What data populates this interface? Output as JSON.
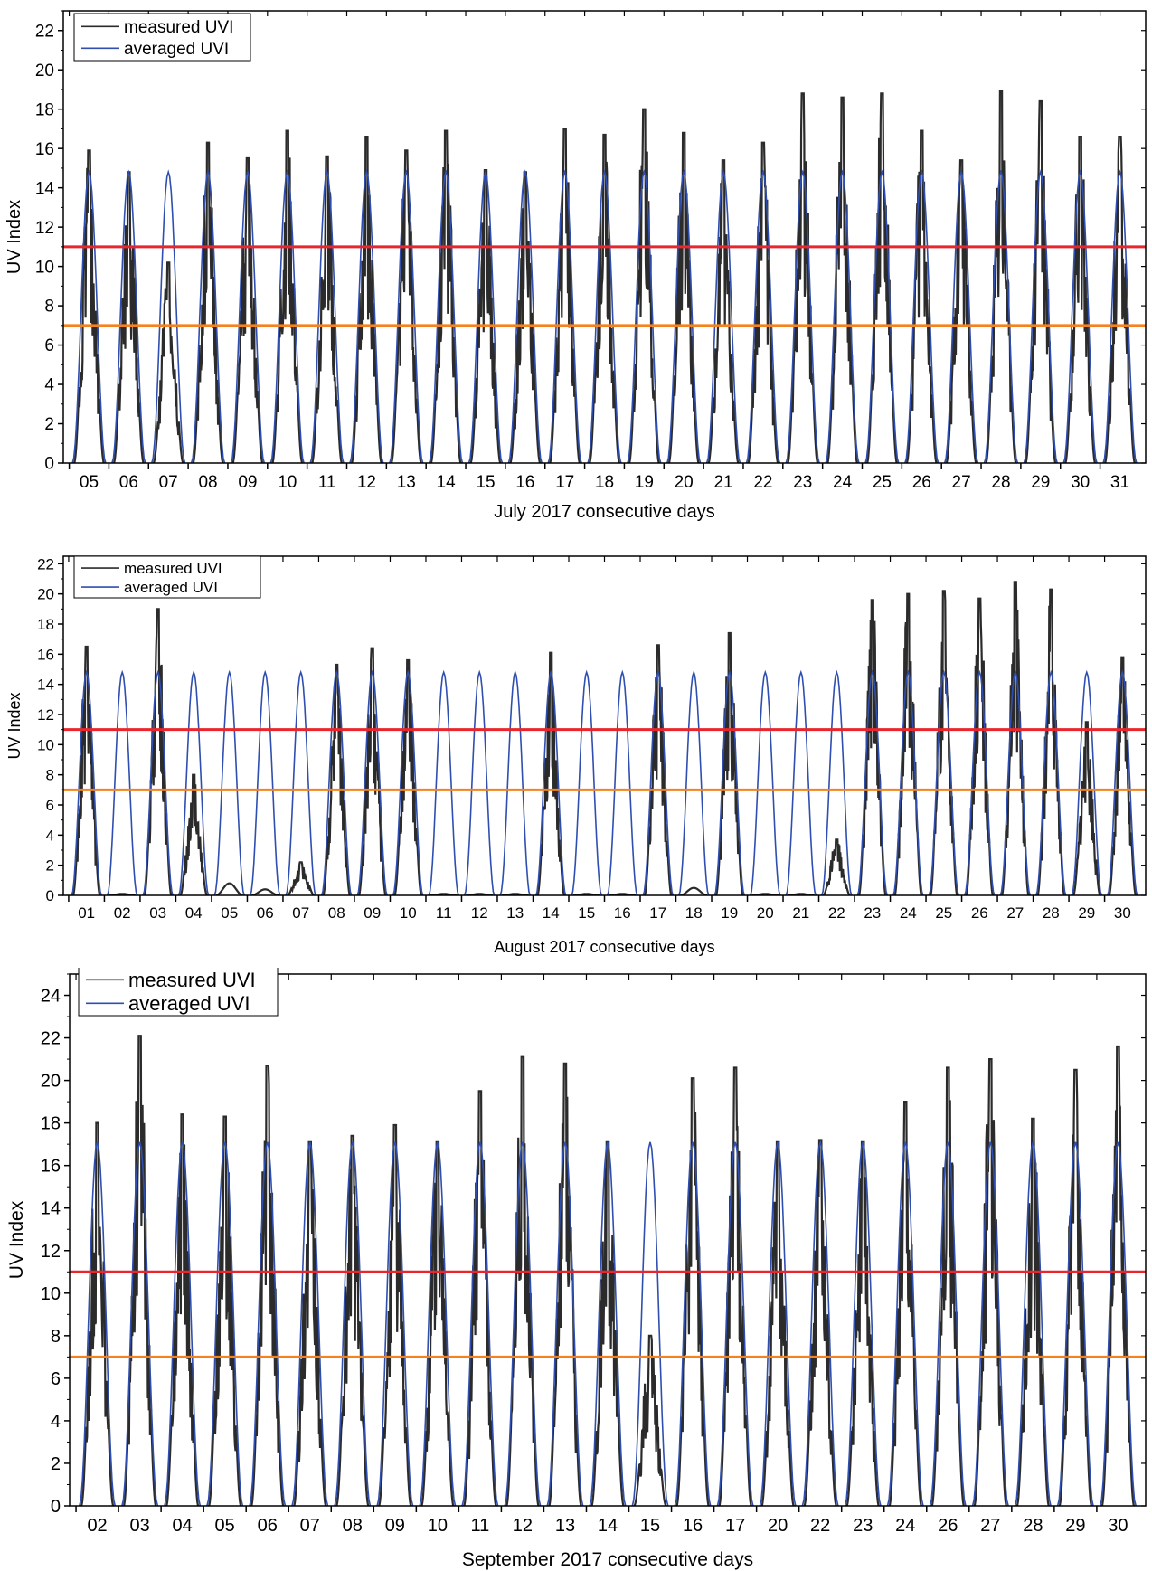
{
  "chart_data": [
    {
      "type": "line",
      "xlabel": "July 2017 consecutive days",
      "ylabel": "UV Index",
      "ylim": [
        0,
        23
      ],
      "yticks": [
        0,
        2,
        4,
        6,
        8,
        10,
        12,
        14,
        16,
        18,
        20,
        22
      ],
      "grid": false,
      "legend_position": "top-left",
      "x": [
        "05",
        "06",
        "07",
        "08",
        "09",
        "10",
        "11",
        "12",
        "13",
        "14",
        "15",
        "16",
        "17",
        "18",
        "19",
        "20",
        "21",
        "22",
        "23",
        "24",
        "25",
        "26",
        "27",
        "28",
        "29",
        "30",
        "31"
      ],
      "series": [
        {
          "name": "measured UVI",
          "color": "#2b2b2b",
          "values": [
            15.9,
            14.8,
            10.2,
            16.3,
            15.5,
            16.9,
            15.6,
            16.6,
            15.9,
            16.9,
            14.9,
            14.8,
            17.0,
            16.7,
            18.0,
            16.8,
            15.4,
            16.3,
            18.8,
            18.6,
            18.8,
            16.9,
            15.4,
            18.9,
            18.4,
            16.6,
            16.6
          ]
        },
        {
          "name": "averaged UVI",
          "color": "#2f4fb0",
          "values": [
            14.8,
            14.8,
            14.8,
            14.8,
            14.8,
            14.8,
            14.8,
            14.8,
            14.8,
            14.8,
            14.8,
            14.8,
            14.8,
            14.8,
            14.8,
            14.8,
            14.8,
            14.8,
            14.8,
            14.8,
            14.8,
            14.8,
            14.8,
            14.8,
            14.8,
            14.8,
            14.8
          ]
        }
      ],
      "reference_lines": [
        {
          "value": 11,
          "color": "#e8262b"
        },
        {
          "value": 7,
          "color": "#f5821f"
        }
      ]
    },
    {
      "type": "line",
      "xlabel": "August 2017 consecutive days",
      "ylabel": "UV Index",
      "ylim": [
        0,
        22.5
      ],
      "yticks": [
        0,
        2,
        4,
        6,
        8,
        10,
        12,
        14,
        16,
        18,
        20,
        22
      ],
      "grid": false,
      "legend_position": "top-left",
      "x": [
        "01",
        "02",
        "03",
        "04",
        "05",
        "06",
        "07",
        "08",
        "09",
        "10",
        "11",
        "12",
        "13",
        "14",
        "15",
        "16",
        "17",
        "18",
        "19",
        "20",
        "21",
        "22",
        "23",
        "24",
        "25",
        "26",
        "27",
        "28",
        "29",
        "30"
      ],
      "series": [
        {
          "name": "measured UVI",
          "color": "#2b2b2b",
          "values": [
            16.5,
            0,
            19.0,
            8.0,
            0.8,
            0.4,
            2.2,
            15.3,
            16.4,
            15.6,
            0,
            0,
            0,
            16.1,
            0,
            0,
            16.6,
            0.5,
            17.4,
            0,
            0,
            3.7,
            19.6,
            20.0,
            20.2,
            19.7,
            20.8,
            20.3,
            11.5,
            15.8
          ]
        },
        {
          "name": "averaged UVI",
          "color": "#2f4fb0",
          "values": [
            14.8,
            14.8,
            14.8,
            14.8,
            14.8,
            14.8,
            14.8,
            14.8,
            14.8,
            14.8,
            14.8,
            14.8,
            14.8,
            14.8,
            14.8,
            14.8,
            14.8,
            14.8,
            14.8,
            14.8,
            14.8,
            14.8,
            14.8,
            14.8,
            14.8,
            14.8,
            14.8,
            14.8,
            14.8,
            14.8
          ]
        }
      ],
      "reference_lines": [
        {
          "value": 11,
          "color": "#e8262b"
        },
        {
          "value": 7,
          "color": "#f5821f"
        }
      ]
    },
    {
      "type": "line",
      "xlabel": "September 2017 consecutive days",
      "ylabel": "UV Index",
      "ylim": [
        0,
        25
      ],
      "yticks": [
        0,
        2,
        4,
        6,
        8,
        10,
        12,
        14,
        16,
        18,
        20,
        22,
        24
      ],
      "grid": false,
      "legend_position": "top-left",
      "x": [
        "02",
        "03",
        "04",
        "05",
        "06",
        "07",
        "08",
        "09",
        "10",
        "11",
        "12",
        "13",
        "14",
        "15",
        "16",
        "17",
        "20",
        "22",
        "23",
        "24",
        "26",
        "27",
        "28",
        "29",
        "30"
      ],
      "series": [
        {
          "name": "measured UVI",
          "color": "#2b2b2b",
          "values": [
            18.0,
            22.1,
            18.4,
            18.3,
            20.7,
            17.1,
            17.4,
            17.9,
            17.1,
            19.5,
            21.1,
            20.8,
            17.1,
            8.0,
            20.1,
            20.6,
            17.1,
            17.2,
            17.1,
            19.0,
            20.6,
            21.0,
            18.2,
            20.5,
            21.6
          ]
        },
        {
          "name": "averaged UVI",
          "color": "#2f4fb0",
          "values": [
            17.1,
            17.1,
            17.1,
            17.1,
            17.1,
            17.1,
            17.1,
            17.1,
            17.1,
            17.1,
            17.1,
            17.1,
            17.1,
            17.1,
            17.1,
            17.1,
            17.1,
            17.1,
            17.1,
            17.1,
            17.1,
            17.1,
            17.1,
            17.1,
            17.1
          ]
        }
      ],
      "reference_lines": [
        {
          "value": 11,
          "color": "#e8262b"
        },
        {
          "value": 7,
          "color": "#f5821f"
        }
      ]
    }
  ]
}
